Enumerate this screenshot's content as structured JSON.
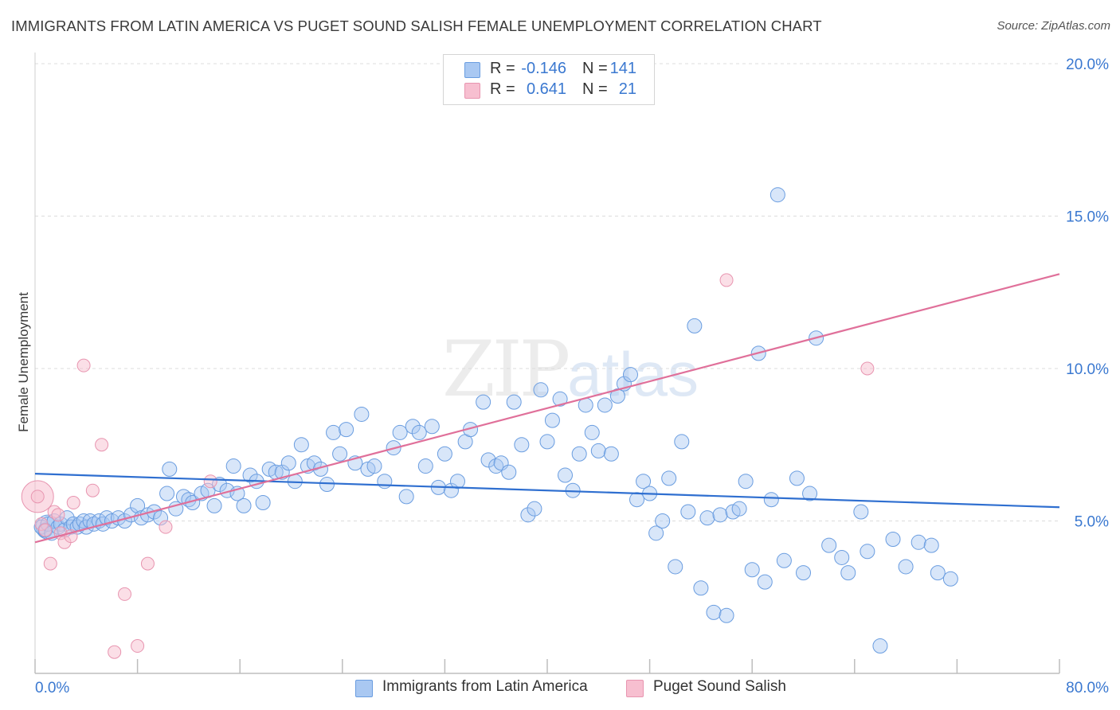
{
  "title": "IMMIGRANTS FROM LATIN AMERICA VS PUGET SOUND SALISH FEMALE UNEMPLOYMENT CORRELATION CHART",
  "source": "Source: ZipAtlas.com",
  "watermark": {
    "zip": "ZIP",
    "atlas": "atlas"
  },
  "legend": {
    "rows": [
      {
        "r_label": "R =",
        "r_value": "-0.146",
        "n_label": "N =",
        "n_value": "141",
        "color": "#a9c8f2"
      },
      {
        "r_label": "R =",
        "r_value": "0.641",
        "n_label": "N =",
        "n_value": "21",
        "color": "#f7bfd0"
      }
    ]
  },
  "bottom_legend": {
    "series1": "Immigrants from Latin America",
    "series2": "Puget Sound Salish"
  },
  "colors": {
    "blue_fill": "#a9c8f2",
    "blue_stroke": "#6a9de0",
    "blue_line": "#2f6fd0",
    "pink_fill": "#f7bfd0",
    "pink_stroke": "#e895b0",
    "pink_line": "#e0709a",
    "tick_text": "#3a78d0",
    "grid": "#dcdcdc"
  },
  "chart_data": {
    "type": "scatter",
    "xlabel": "",
    "ylabel": "Female Unemployment",
    "xlim": [
      0,
      80
    ],
    "ylim": [
      0,
      20
    ],
    "x_tick_labels": [
      "0.0%",
      "80.0%"
    ],
    "y_ticks": [
      5,
      10,
      15,
      20
    ],
    "y_tick_labels": [
      "5.0%",
      "10.0%",
      "15.0%",
      "20.0%"
    ],
    "grid": true,
    "legend_position": "top-center",
    "series": [
      {
        "name": "Immigrants from Latin America",
        "r": -0.146,
        "n": 141,
        "trend": {
          "x": [
            0,
            80
          ],
          "y": [
            6.55,
            5.45
          ]
        },
        "points": [
          [
            0.5,
            4.8
          ],
          [
            0.8,
            4.7
          ],
          [
            1.0,
            4.9
          ],
          [
            1.3,
            4.6
          ],
          [
            1.5,
            5.0
          ],
          [
            1.8,
            4.8
          ],
          [
            2.0,
            4.9
          ],
          [
            2.3,
            4.7
          ],
          [
            2.5,
            5.1
          ],
          [
            2.8,
            4.8
          ],
          [
            3.0,
            4.9
          ],
          [
            3.3,
            4.8
          ],
          [
            3.5,
            4.9
          ],
          [
            3.8,
            5.0
          ],
          [
            4.0,
            4.8
          ],
          [
            4.3,
            5.0
          ],
          [
            4.6,
            4.9
          ],
          [
            5.0,
            5.0
          ],
          [
            5.3,
            4.9
          ],
          [
            5.6,
            5.1
          ],
          [
            6.0,
            5.0
          ],
          [
            6.5,
            5.1
          ],
          [
            7.0,
            5.0
          ],
          [
            7.5,
            5.2
          ],
          [
            8.0,
            5.5
          ],
          [
            8.3,
            5.1
          ],
          [
            8.8,
            5.2
          ],
          [
            9.3,
            5.3
          ],
          [
            9.8,
            5.1
          ],
          [
            10.3,
            5.9
          ],
          [
            10.5,
            6.7
          ],
          [
            11.0,
            5.4
          ],
          [
            11.6,
            5.8
          ],
          [
            12.0,
            5.7
          ],
          [
            12.3,
            5.6
          ],
          [
            13.0,
            5.9
          ],
          [
            13.5,
            6.0
          ],
          [
            14.0,
            5.5
          ],
          [
            14.4,
            6.2
          ],
          [
            15.0,
            6.0
          ],
          [
            15.5,
            6.8
          ],
          [
            15.8,
            5.9
          ],
          [
            16.3,
            5.5
          ],
          [
            16.8,
            6.5
          ],
          [
            17.3,
            6.3
          ],
          [
            17.8,
            5.6
          ],
          [
            18.3,
            6.7
          ],
          [
            18.8,
            6.6
          ],
          [
            19.3,
            6.6
          ],
          [
            19.8,
            6.9
          ],
          [
            20.3,
            6.3
          ],
          [
            20.8,
            7.5
          ],
          [
            21.3,
            6.8
          ],
          [
            21.8,
            6.9
          ],
          [
            22.3,
            6.7
          ],
          [
            22.8,
            6.2
          ],
          [
            23.3,
            7.9
          ],
          [
            23.8,
            7.2
          ],
          [
            24.3,
            8.0
          ],
          [
            25.0,
            6.9
          ],
          [
            25.5,
            8.5
          ],
          [
            26.0,
            6.7
          ],
          [
            26.5,
            6.8
          ],
          [
            27.3,
            6.3
          ],
          [
            28.0,
            7.4
          ],
          [
            28.5,
            7.9
          ],
          [
            29.0,
            5.8
          ],
          [
            29.5,
            8.1
          ],
          [
            30.0,
            7.9
          ],
          [
            30.5,
            6.8
          ],
          [
            31.0,
            8.1
          ],
          [
            31.5,
            6.1
          ],
          [
            32.0,
            7.2
          ],
          [
            32.5,
            6.0
          ],
          [
            33.0,
            6.3
          ],
          [
            33.6,
            7.6
          ],
          [
            34.0,
            8.0
          ],
          [
            35.0,
            8.9
          ],
          [
            35.4,
            7.0
          ],
          [
            36.0,
            6.8
          ],
          [
            36.4,
            6.9
          ],
          [
            37.0,
            6.6
          ],
          [
            37.4,
            8.9
          ],
          [
            38.0,
            7.5
          ],
          [
            38.5,
            5.2
          ],
          [
            39.0,
            5.4
          ],
          [
            39.5,
            9.3
          ],
          [
            40.0,
            7.6
          ],
          [
            40.4,
            8.3
          ],
          [
            41.0,
            9.0
          ],
          [
            41.4,
            6.5
          ],
          [
            42.0,
            6.0
          ],
          [
            42.5,
            7.2
          ],
          [
            43.0,
            8.8
          ],
          [
            43.5,
            7.9
          ],
          [
            44.0,
            7.3
          ],
          [
            44.5,
            8.8
          ],
          [
            45.0,
            7.2
          ],
          [
            45.5,
            9.1
          ],
          [
            46.0,
            9.5
          ],
          [
            46.5,
            9.8
          ],
          [
            47.0,
            5.7
          ],
          [
            47.5,
            6.3
          ],
          [
            48.0,
            5.9
          ],
          [
            48.5,
            4.6
          ],
          [
            49.0,
            5.0
          ],
          [
            49.5,
            6.4
          ],
          [
            50.0,
            3.5
          ],
          [
            50.5,
            7.6
          ],
          [
            51.0,
            5.3
          ],
          [
            51.5,
            11.4
          ],
          [
            52.0,
            2.8
          ],
          [
            52.5,
            5.1
          ],
          [
            53.0,
            2.0
          ],
          [
            53.5,
            5.2
          ],
          [
            54.0,
            1.9
          ],
          [
            54.5,
            5.3
          ],
          [
            55.0,
            5.4
          ],
          [
            55.5,
            6.3
          ],
          [
            56.0,
            3.4
          ],
          [
            56.5,
            10.5
          ],
          [
            57.0,
            3.0
          ],
          [
            57.5,
            5.7
          ],
          [
            58.0,
            15.7
          ],
          [
            58.5,
            3.7
          ],
          [
            59.5,
            6.4
          ],
          [
            60.0,
            3.3
          ],
          [
            60.5,
            5.9
          ],
          [
            61.0,
            11.0
          ],
          [
            62.0,
            4.2
          ],
          [
            63.0,
            3.8
          ],
          [
            63.5,
            3.3
          ],
          [
            64.5,
            5.3
          ],
          [
            65.0,
            4.0
          ],
          [
            66.0,
            0.9
          ],
          [
            67.0,
            4.4
          ],
          [
            68.0,
            3.5
          ],
          [
            69.0,
            4.3
          ],
          [
            70.0,
            4.2
          ],
          [
            70.5,
            3.3
          ],
          [
            71.5,
            3.1
          ]
        ]
      },
      {
        "name": "Puget Sound Salish",
        "r": 0.641,
        "n": 21,
        "trend": {
          "x": [
            0,
            80
          ],
          "y": [
            4.3,
            13.1
          ]
        },
        "points": [
          [
            0.2,
            5.8
          ],
          [
            0.5,
            4.9
          ],
          [
            0.8,
            4.7
          ],
          [
            1.2,
            3.6
          ],
          [
            1.5,
            5.3
          ],
          [
            1.8,
            5.2
          ],
          [
            2.0,
            4.6
          ],
          [
            2.3,
            4.3
          ],
          [
            2.8,
            4.5
          ],
          [
            3.0,
            5.6
          ],
          [
            3.8,
            10.1
          ],
          [
            4.5,
            6.0
          ],
          [
            5.2,
            7.5
          ],
          [
            6.2,
            0.7
          ],
          [
            7.0,
            2.6
          ],
          [
            8.0,
            0.9
          ],
          [
            8.8,
            3.6
          ],
          [
            10.2,
            4.8
          ],
          [
            13.7,
            6.3
          ],
          [
            54.0,
            12.9
          ],
          [
            65.0,
            10.0
          ]
        ]
      }
    ]
  }
}
